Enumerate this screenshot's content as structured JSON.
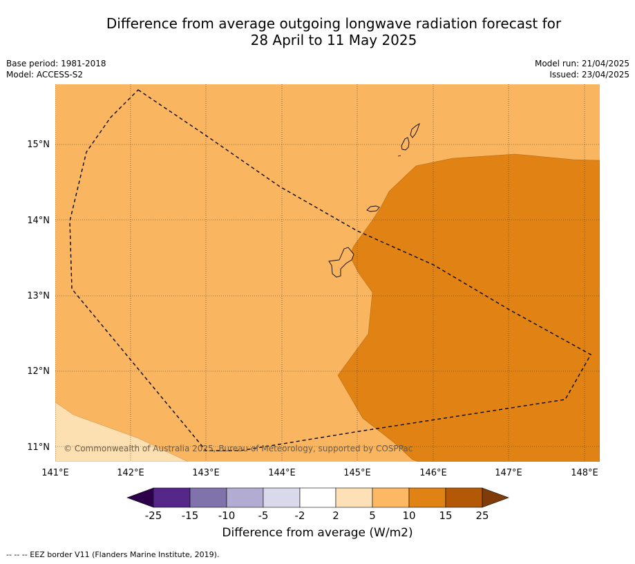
{
  "title_line1": "Difference from average outgoing longwave radiation forecast for",
  "title_line2": "28 April to 11 May 2025",
  "meta_left": {
    "line1": "Base period: 1981-2018",
    "line2": "Model: ACCESS-S2"
  },
  "meta_right": {
    "line1": "Model run: 21/04/2025",
    "line2": "Issued: 23/04/2025"
  },
  "map": {
    "lon_range": [
      141.0,
      148.2
    ],
    "lat_range": [
      10.8,
      15.8
    ],
    "lon_ticks": [
      "141°E",
      "142°E",
      "143°E",
      "144°E",
      "145°E",
      "146°E",
      "147°E",
      "148°E"
    ],
    "lat_ticks": [
      "11°N",
      "12°N",
      "13°N",
      "14°N",
      "15°N"
    ],
    "grid": true,
    "copyright": "© Commonwealth of Australia 2025, Bureau of Meteorology, supported by COSPPac",
    "colors": {
      "5_to_10": "#fab560",
      "10_to_15": "#e08214",
      "2_to_5": "#fde0b2",
      "border": "#000000"
    }
  },
  "colorbar": {
    "ticks": [
      "-25",
      "-15",
      "-10",
      "-5",
      "-2",
      "2",
      "5",
      "10",
      "15",
      "25"
    ],
    "colors": [
      "#2d004b",
      "#542788",
      "#8073ac",
      "#b2abd2",
      "#d8daeb",
      "#ffffff",
      "#fee0b6",
      "#fdb863",
      "#e08214",
      "#b35806",
      "#7f3b08"
    ],
    "label": "Difference from average (W/m2)"
  },
  "footnote": "--  --  -- EEZ border V11 (Flanders Marine Institute, 2019)."
}
